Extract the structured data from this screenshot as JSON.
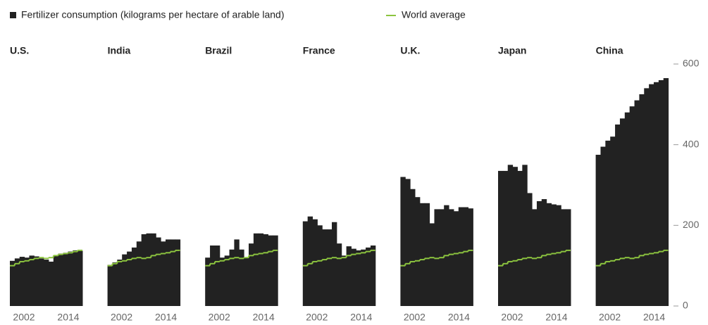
{
  "chart_data": {
    "type": "bar",
    "legend": {
      "bars": "Fertilizer consumption (kilograms per hectare of arable land)",
      "line": "World average"
    },
    "bar_color": "#222222",
    "line_color": "#8cc43f",
    "x": [
      2002,
      2003,
      2004,
      2005,
      2006,
      2007,
      2008,
      2009,
      2010,
      2011,
      2012,
      2013,
      2014,
      2015,
      2016
    ],
    "xticks": [
      2002,
      2014
    ],
    "ylim": [
      0,
      600
    ],
    "yticks": [
      0,
      200,
      400,
      600
    ],
    "world_average": [
      100,
      105,
      110,
      112,
      115,
      118,
      120,
      118,
      120,
      125,
      128,
      130,
      132,
      135,
      138
    ],
    "panels": [
      {
        "title": "U.S.",
        "values": [
          112,
          118,
          122,
          120,
          125,
          123,
          118,
          115,
          110,
          125,
          130,
          132,
          135,
          138,
          137
        ]
      },
      {
        "title": "India",
        "values": [
          102,
          108,
          115,
          128,
          135,
          145,
          160,
          178,
          180,
          180,
          170,
          160,
          165,
          165,
          165
        ]
      },
      {
        "title": "Brazil",
        "values": [
          120,
          150,
          150,
          120,
          125,
          140,
          165,
          140,
          120,
          155,
          180,
          180,
          178,
          175,
          175
        ]
      },
      {
        "title": "France",
        "values": [
          210,
          222,
          215,
          200,
          190,
          190,
          208,
          155,
          125,
          148,
          142,
          138,
          140,
          145,
          150
        ]
      },
      {
        "title": "U.K.",
        "values": [
          320,
          315,
          290,
          270,
          255,
          255,
          205,
          240,
          240,
          250,
          240,
          235,
          245,
          245,
          242
        ]
      },
      {
        "title": "Japan",
        "values": [
          335,
          335,
          350,
          345,
          335,
          350,
          280,
          240,
          260,
          265,
          255,
          252,
          250,
          240,
          240
        ]
      },
      {
        "title": "China",
        "values": [
          375,
          395,
          410,
          420,
          450,
          465,
          480,
          495,
          510,
          525,
          540,
          550,
          555,
          560,
          565
        ]
      }
    ]
  }
}
